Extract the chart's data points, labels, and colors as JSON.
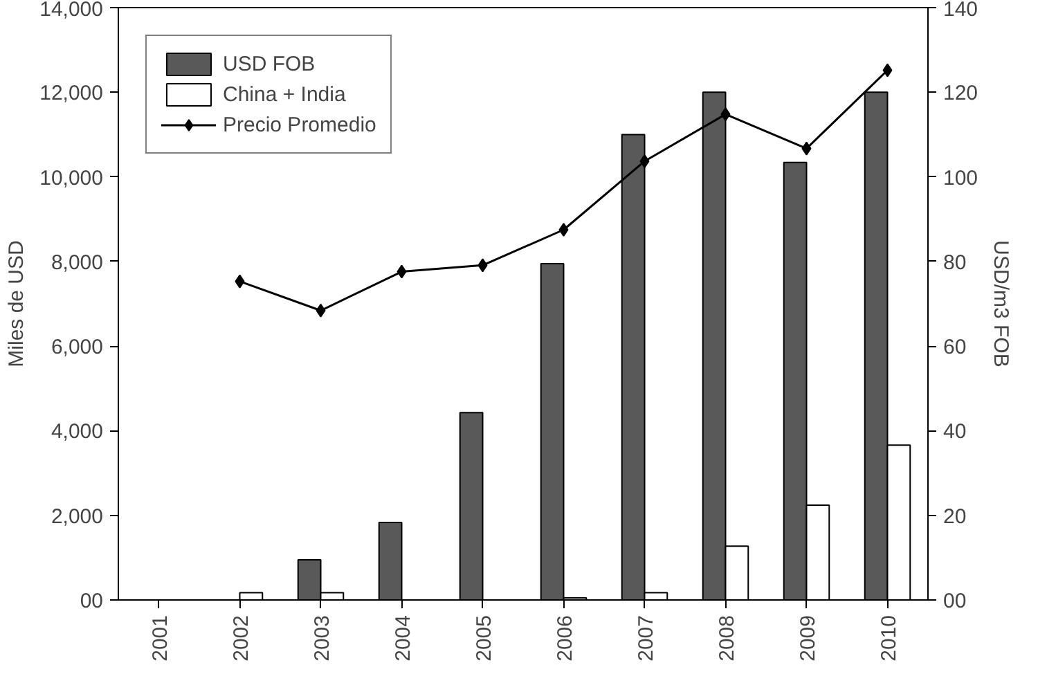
{
  "chart_data": {
    "type": "bar",
    "ylabel": "Miles de USD",
    "y2label": "USD/m3 FOB",
    "categories": [
      "2001",
      "2002",
      "2003",
      "2004",
      "2005",
      "2006",
      "2007",
      "2008",
      "2009",
      "2010"
    ],
    "series": [
      {
        "name": "USD FOB",
        "color": "#595959",
        "values": [
          null,
          null,
          950,
          1830,
          4430,
          7950,
          11000,
          12000,
          10340,
          12000
        ]
      },
      {
        "name": "China + India",
        "color": "#ffffff",
        "values": [
          null,
          170,
          170,
          null,
          null,
          50,
          170,
          1270,
          2240,
          3660
        ]
      },
      {
        "name": "Precio Promedio",
        "type": "line",
        "axis": "y2",
        "color": "#000000",
        "marker": "diamond",
        "values": [
          null,
          75.3,
          68.4,
          77.6,
          79.1,
          87.5,
          103.7,
          114.8,
          106.7,
          125.2
        ]
      }
    ],
    "ylim": [
      0,
      14000
    ],
    "yticks": [
      {
        "value": 0,
        "label": "00"
      },
      {
        "value": 2000,
        "label": "2,000"
      },
      {
        "value": 4000,
        "label": "4,000"
      },
      {
        "value": 6000,
        "label": "6,000"
      },
      {
        "value": 8000,
        "label": "8,000"
      },
      {
        "value": 10000,
        "label": "10,000"
      },
      {
        "value": 12000,
        "label": "12,000"
      },
      {
        "value": 14000,
        "label": "14,000"
      }
    ],
    "y2lim": [
      0,
      140
    ],
    "y2ticks": [
      {
        "value": 0,
        "label": "00"
      },
      20,
      40,
      60,
      80,
      100,
      120,
      140
    ],
    "grid": false,
    "legend": "top left"
  }
}
